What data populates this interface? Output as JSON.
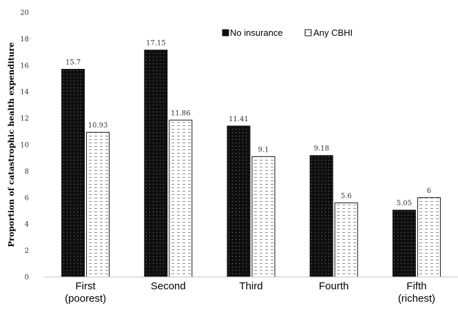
{
  "chart_data": {
    "type": "bar",
    "categories": [
      [
        "First",
        "(poorest)"
      ],
      [
        "Second"
      ],
      [
        "Third"
      ],
      [
        "Fourth"
      ],
      [
        "Fifth",
        "(richest)"
      ]
    ],
    "series": [
      {
        "name": "No insurance",
        "values": [
          15.7,
          17.15,
          11.41,
          9.18,
          5.05
        ],
        "labels": [
          "15.7",
          "17.15",
          "11.41",
          "9.18",
          "5.05"
        ],
        "pattern": "dark-dotted"
      },
      {
        "name": "Any CBHI",
        "values": [
          10.93,
          11.86,
          9.1,
          5.6,
          6
        ],
        "labels": [
          "10.93",
          "11.86",
          "9.1",
          "5.6",
          "6"
        ],
        "pattern": "light-dashed"
      }
    ],
    "title": "",
    "xlabel": "",
    "ylabel": "Proportion of catastrophic health expenditure",
    "ylim": [
      0,
      20
    ],
    "yticks": [
      0,
      2,
      4,
      6,
      8,
      10,
      12,
      14,
      16,
      18,
      20
    ],
    "grid": false,
    "legend": "top-center",
    "colors": {
      "dark_fill": "#0f0f0f",
      "light_fill": "#ffffff",
      "stroke": "#111111",
      "axis": "#bfbfbf"
    }
  }
}
